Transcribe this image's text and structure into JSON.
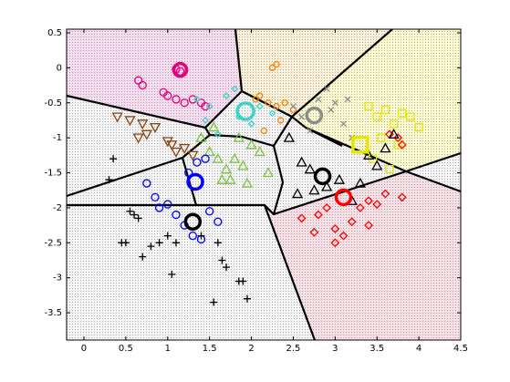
{
  "chart_data": {
    "type": "scatter",
    "xlim": [
      -0.207,
      4.5
    ],
    "ylim": [
      -3.89,
      0.552
    ],
    "xticks": [
      0,
      0.5,
      1,
      1.5,
      2,
      2.5,
      3,
      3.5,
      4,
      4.5
    ],
    "yticks": [
      0.5,
      0,
      -0.5,
      -1,
      -1.5,
      -2,
      -2.5,
      -3,
      -3.5
    ],
    "series": [
      {
        "color": "#e6007e",
        "marker": "o",
        "size": 4,
        "x": [
          1.1,
          1.15,
          0.65,
          0.7,
          0.95,
          1.0,
          1.1,
          1.2,
          1.3,
          1.4,
          1.45
        ],
        "values": [
          -0.02,
          -0.05,
          -0.18,
          -0.25,
          -0.35,
          -0.4,
          -0.45,
          -0.5,
          -0.45,
          -0.5,
          -0.55
        ]
      },
      {
        "color": "#3cd2c8",
        "marker": "d",
        "size": 3,
        "x": [
          1.35,
          1.5,
          1.7,
          1.85,
          2.0,
          2.1,
          1.6,
          1.8,
          2.25,
          1.45
        ],
        "values": [
          -0.45,
          -0.55,
          -0.4,
          -0.7,
          -0.8,
          -0.55,
          -0.95,
          -0.3,
          -0.65,
          -0.75
        ]
      },
      {
        "color": "#ff8000",
        "marker": "o",
        "size": 3,
        "x": [
          2.05,
          2.1,
          2.2,
          2.3,
          2.4,
          2.35,
          2.15,
          2.5,
          2.3,
          2.25
        ],
        "values": [
          -0.45,
          -0.4,
          -0.5,
          -0.55,
          -0.5,
          -0.75,
          -0.9,
          -0.6,
          0.05,
          0.0
        ]
      },
      {
        "color": "#8c8c8c",
        "marker": "x",
        "size": 3,
        "x": [
          2.5,
          2.6,
          2.8,
          2.9,
          3.0,
          3.1,
          3.2,
          2.7,
          2.95,
          3.15
        ],
        "values": [
          -0.55,
          -0.7,
          -0.45,
          -0.3,
          -0.5,
          -0.8,
          -1.0,
          -0.9,
          -0.6,
          -0.45
        ]
      },
      {
        "color": "#e6e600",
        "marker": "s",
        "size": 4,
        "x": [
          3.4,
          3.5,
          3.6,
          3.7,
          3.8,
          3.9,
          3.55,
          3.75,
          3.45,
          3.65,
          4.0
        ],
        "values": [
          -0.55,
          -0.7,
          -0.6,
          -0.8,
          -0.65,
          -0.7,
          -1.0,
          -1.1,
          -1.3,
          -1.45,
          -0.85
        ]
      },
      {
        "color": "#ff0000",
        "marker": "d",
        "size": 4,
        "x": [
          2.6,
          2.8,
          2.9,
          3.0,
          3.1,
          3.2,
          3.3,
          3.4,
          3.5,
          3.0,
          2.75,
          3.6,
          3.8,
          3.4,
          3.75,
          3.8,
          3.65
        ],
        "values": [
          -2.15,
          -2.1,
          -2.0,
          -2.3,
          -2.4,
          -2.2,
          -2.0,
          -1.9,
          -1.95,
          -2.5,
          -2.35,
          -1.8,
          -1.85,
          -2.25,
          -1.0,
          -1.1,
          -0.95
        ]
      },
      {
        "color": "#000000",
        "marker": "^",
        "size": 5,
        "x": [
          2.45,
          2.6,
          2.7,
          2.9,
          3.05,
          3.2,
          3.4,
          3.5,
          3.6,
          3.7,
          2.75,
          2.55,
          3.3
        ],
        "values": [
          -1.0,
          -1.35,
          -1.45,
          -1.7,
          -1.6,
          -1.9,
          -1.25,
          -1.4,
          -1.15,
          -0.95,
          -1.75,
          -1.8,
          -1.65
        ]
      },
      {
        "color": "#8b4513",
        "marker": "v",
        "size": 5,
        "x": [
          0.4,
          0.55,
          0.7,
          0.75,
          0.85,
          1.0,
          1.05,
          1.1,
          1.2,
          1.3,
          0.65
        ],
        "values": [
          -0.7,
          -0.75,
          -0.8,
          -0.95,
          -0.85,
          -1.05,
          -1.1,
          -1.2,
          -1.15,
          -1.25,
          -1.0
        ]
      },
      {
        "color": "#7dc242",
        "marker": "^",
        "size": 5,
        "x": [
          1.4,
          1.5,
          1.6,
          1.7,
          1.8,
          1.9,
          2.0,
          2.1,
          1.75,
          1.95,
          2.2,
          1.55,
          1.65,
          1.85
        ],
        "values": [
          -1.0,
          -1.2,
          -1.3,
          -1.45,
          -1.3,
          -1.4,
          -1.1,
          -1.2,
          -1.6,
          -1.65,
          -1.5,
          -0.85,
          -1.6,
          -1.0
        ]
      },
      {
        "color": "#0000ff",
        "marker": "o",
        "size": 4,
        "x": [
          0.75,
          0.85,
          0.9,
          1.0,
          1.1,
          1.2,
          1.3,
          1.4,
          1.5,
          1.6,
          1.35,
          1.25,
          1.45
        ],
        "values": [
          -1.65,
          -1.85,
          -2.0,
          -1.95,
          -2.1,
          -2.25,
          -2.4,
          -2.45,
          -2.05,
          -2.2,
          -1.35,
          -1.5,
          -1.3
        ]
      },
      {
        "color": "#000000",
        "marker": "+",
        "size": 4,
        "x": [
          0.35,
          0.3,
          0.55,
          0.6,
          0.65,
          0.45,
          0.5,
          0.8,
          0.7,
          1.0,
          0.9,
          1.05,
          1.6,
          1.7,
          1.9,
          1.95,
          1.55,
          1.85,
          1.1,
          1.65,
          1.4
        ],
        "values": [
          -1.3,
          -1.6,
          -2.05,
          -2.1,
          -2.15,
          -2.5,
          -2.5,
          -2.55,
          -2.7,
          -2.4,
          -2.5,
          -2.95,
          -2.5,
          -2.85,
          -3.05,
          -3.3,
          -3.35,
          -3.05,
          -2.5,
          -2.75,
          -2.4
        ]
      },
      {
        "color": "#3cd2c8",
        "marker": "o",
        "size": 9,
        "x": [
          1.93
        ],
        "values": [
          -0.62
        ]
      },
      {
        "color": "#8c8c8c",
        "marker": "o",
        "size": 8,
        "x": [
          2.75
        ],
        "values": [
          -0.68
        ]
      },
      {
        "color": "#e6007e",
        "marker": "o",
        "size": 7,
        "x": [
          1.15
        ],
        "values": [
          -0.03
        ]
      },
      {
        "color": "#0000ff",
        "marker": "o",
        "size": 8,
        "x": [
          1.33
        ],
        "values": [
          -1.63
        ]
      },
      {
        "color": "#000000",
        "marker": "o",
        "size": 8,
        "x": [
          1.3,
          2.85
        ],
        "values": [
          -2.2,
          -1.55
        ]
      },
      {
        "color": "#ff0000",
        "marker": "o",
        "size": 8,
        "x": [
          3.1
        ],
        "values": [
          -1.85
        ]
      },
      {
        "color": "#e6e600",
        "marker": "s",
        "size": 8,
        "x": [
          3.3
        ],
        "values": [
          -1.1
        ]
      }
    ]
  }
}
